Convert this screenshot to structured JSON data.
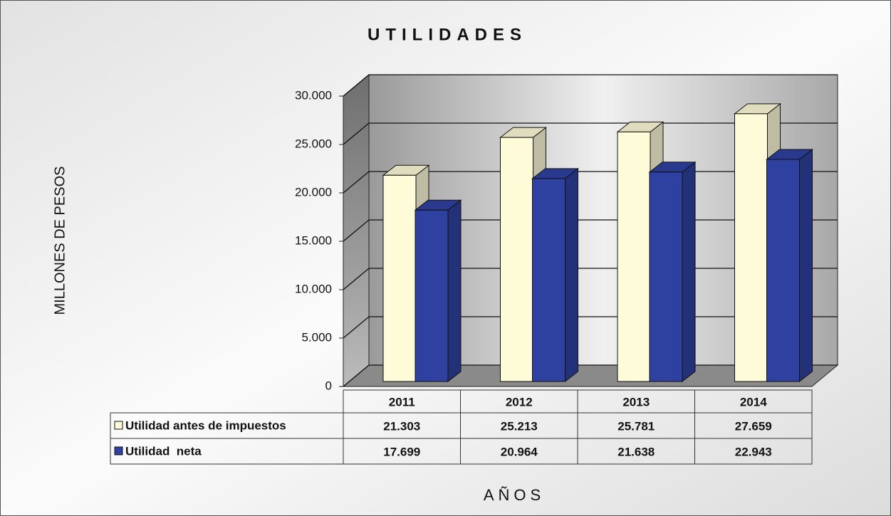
{
  "chart_data": {
    "type": "bar3d",
    "title": "UTILIDADES",
    "y_label": "MILLONES DE PESOS",
    "x_label": "AÑOS",
    "categories": [
      "2011",
      "2012",
      "2013",
      "2014"
    ],
    "series": [
      {
        "name": "Utilidad antes de impuestos",
        "color": "#fdfbd8",
        "values": [
          21303,
          25213,
          25781,
          27659
        ],
        "value_labels": [
          "21.303",
          "25.213",
          "25.781",
          "27.659"
        ]
      },
      {
        "name": "Utilidad  neta",
        "color": "#2f41a0",
        "values": [
          17699,
          20964,
          21638,
          22943
        ],
        "value_labels": [
          "17.699",
          "20.964",
          "21.638",
          "22.943"
        ]
      }
    ],
    "ylim": [
      0,
      30000
    ],
    "yticks": [
      0,
      {
        "value": 5000,
        "label": "5.000"
      },
      {
        "value": 10000,
        "label": "10.000"
      },
      {
        "value": 15000,
        "label": "15.000"
      },
      {
        "value": 20000,
        "label": "20.000"
      },
      {
        "value": 25000,
        "label": "25.000"
      },
      {
        "value": 30000,
        "label": "30.000"
      }
    ],
    "grid": true
  }
}
